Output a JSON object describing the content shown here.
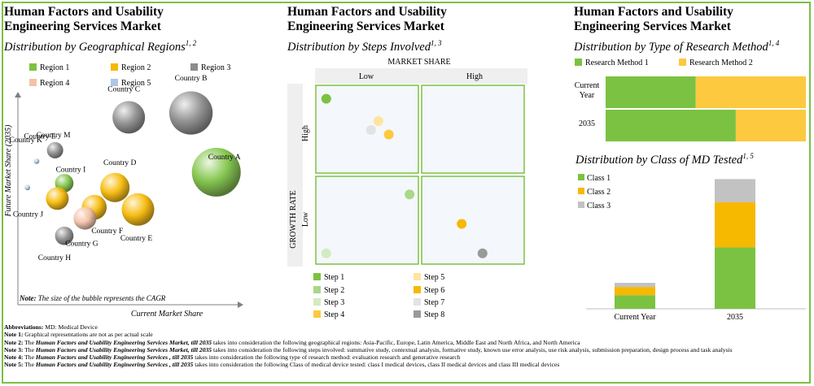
{
  "panel1": {
    "title_line1": "Human Factors and Usability",
    "title_line2": "Engineering Services Market",
    "subtitle": "Distribution by Geographical Regions",
    "subtitle_sup": "1, 2",
    "legend": [
      {
        "label": "Region 1",
        "color": "#7cc242"
      },
      {
        "label": "Region 2",
        "color": "#f7b800"
      },
      {
        "label": "Region 3",
        "color": "#8c8c8c"
      },
      {
        "label": "Region 4",
        "color": "#f4c1a9"
      },
      {
        "label": "Region 5",
        "color": "#aec7e0"
      }
    ],
    "note_prefix": "Note:",
    "note_text": " The size of the bubble represents the CAGR"
  },
  "panel2": {
    "title_line1": "Human Factors and Usability",
    "title_line2": "Engineering Services Market",
    "subtitle": "Distribution by Steps Involved",
    "subtitle_sup": "1, 3",
    "legend": [
      {
        "label": "Step 1",
        "color": "#7cc242"
      },
      {
        "label": "Step 5",
        "color": "#fde5a0"
      },
      {
        "label": "Step 2",
        "color": "#a8d888"
      },
      {
        "label": "Step 6",
        "color": "#f7b800"
      },
      {
        "label": "Step 3",
        "color": "#d4ebc2"
      },
      {
        "label": "Step 7",
        "color": "#e3e3e3"
      },
      {
        "label": "Step 4",
        "color": "#fcc93f"
      },
      {
        "label": "Step 8",
        "color": "#9a9a9a"
      }
    ]
  },
  "panel3": {
    "title_line1": "Human Factors and Usability",
    "title_line2": "Engineering Services Market",
    "subtitle": "Distribution by Type of Research Method",
    "subtitle_sup": "1, 4",
    "subtitle2": "Distribution by Class of MD Tested",
    "subtitle2_sup": "1, 5"
  },
  "chart_data": [
    {
      "type": "scatter",
      "title": "Distribution by Geographical Regions",
      "xlabel": "Current Market Share",
      "ylabel": "Future Market Share (2035)",
      "points": [
        {
          "label": "Country A",
          "region": "Region 1",
          "x": 8.4,
          "y": 5.3,
          "size": 45
        },
        {
          "label": "Country B",
          "region": "Region 3",
          "x": 7.3,
          "y": 8.0,
          "size": 40
        },
        {
          "label": "Country C",
          "region": "Region 3",
          "x": 4.6,
          "y": 7.8,
          "size": 30
        },
        {
          "label": "Country D",
          "region": "Region 2",
          "x": 4.0,
          "y": 4.6,
          "size": 27
        },
        {
          "label": "Country E",
          "region": "Region 2",
          "x": 5.0,
          "y": 3.6,
          "size": 30
        },
        {
          "label": "Country F",
          "region": "Region 2",
          "x": 3.1,
          "y": 3.7,
          "size": 23
        },
        {
          "label": "Country G",
          "region": "Region 4",
          "x": 2.7,
          "y": 3.2,
          "size": 21
        },
        {
          "label": "Country H",
          "region": "Region 3",
          "x": 1.8,
          "y": 2.4,
          "size": 17
        },
        {
          "label": "Country I",
          "region": "Region 1",
          "x": 1.8,
          "y": 4.8,
          "size": 17
        },
        {
          "label": "Country J",
          "region": "Region 2",
          "x": 1.5,
          "y": 4.1,
          "size": 21
        },
        {
          "label": "Country K",
          "region": "Region 5",
          "x": 0.2,
          "y": 4.6,
          "size": 5
        },
        {
          "label": "Country L",
          "region": "Region 5",
          "x": 0.6,
          "y": 5.8,
          "size": 5
        },
        {
          "label": "Country M",
          "region": "Region 3",
          "x": 1.4,
          "y": 6.3,
          "size": 15
        }
      ]
    },
    {
      "type": "scatter",
      "title": "Distribution by Steps Involved",
      "xlabel": "MARKET SHARE",
      "ylabel": "GROWTH RATE",
      "x_categories": [
        "Low",
        "High"
      ],
      "y_categories": [
        "Low",
        "High"
      ],
      "points": [
        {
          "label": "Step 1",
          "x": 0.1,
          "y": 1.85
        },
        {
          "label": "Step 2",
          "x": 0.9,
          "y": 0.78
        },
        {
          "label": "Step 3",
          "x": 0.1,
          "y": 0.12
        },
        {
          "label": "Step 4",
          "x": 0.7,
          "y": 1.45
        },
        {
          "label": "Step 5",
          "x": 0.6,
          "y": 1.6
        },
        {
          "label": "Step 6",
          "x": 1.4,
          "y": 0.45
        },
        {
          "label": "Step 7",
          "x": 0.53,
          "y": 1.5
        },
        {
          "label": "Step 8",
          "x": 1.6,
          "y": 0.12
        }
      ]
    },
    {
      "type": "bar",
      "orientation": "horizontal",
      "stacked": true,
      "title": "Distribution by Type of Research Method",
      "categories": [
        "Current Year",
        "2035"
      ],
      "series": [
        {
          "name": "Research Method 1",
          "color": "#7cc242",
          "values": [
            45,
            65
          ]
        },
        {
          "name": "Research Method 2",
          "color": "#fcc93f",
          "values": [
            55,
            35
          ]
        }
      ]
    },
    {
      "type": "bar",
      "stacked": true,
      "title": "Distribution by Class of MD Tested",
      "categories": [
        "Current Year",
        "2035"
      ],
      "ylim": [
        0,
        100
      ],
      "series": [
        {
          "name": "Class 1",
          "color": "#7cc242",
          "values": [
            10,
            45
          ]
        },
        {
          "name": "Class 2",
          "color": "#f7b800",
          "values": [
            6,
            33
          ]
        },
        {
          "name": "Class 3",
          "color": "#c2c2c2",
          "values": [
            3,
            17
          ]
        }
      ]
    }
  ],
  "notes": {
    "abbr_label": "Abbreviations:",
    "abbr_text": " MD: Medical Device",
    "note1_label": "Note 1:",
    "note1_text": " Graphical representations are not as per actual scale",
    "note2_label": "Note 2:",
    "note2_prefix": " The ",
    "note2_market": "Human Factors and Usability Engineering Services Market, till 2035",
    "note2_text": " takes into consideration the following geographical regions: Asia-Pacific, Europe, Latin America, Middle East and North Africa, and North America",
    "note3_label": "Note 3:",
    "note3_prefix": " The ",
    "note3_market": "Human Factors and Usability Engineering Services Market, till 2035",
    "note3_text": " takes into consideration the following steps involved: summative study, contextual analysis, formative study, known use error analysis, use risk analysis, submission preparation, design process and task analysis",
    "note4_label": "Note 4:",
    "note4_prefix": " The ",
    "note4_market": "Human Factors and Usability Engineering Services , till 2035",
    "note4_text": " takes into consideration the following type of research method: evaluation research and generative research",
    "note5_label": "Note 5:",
    "note5_prefix": " The ",
    "note5_market": "Human Factors and Usability Engineering Services , till 2035",
    "note5_text": " takes into consideration the following Class of medical device tested: class I medical devices, class II medical devices and class III medical devices"
  }
}
